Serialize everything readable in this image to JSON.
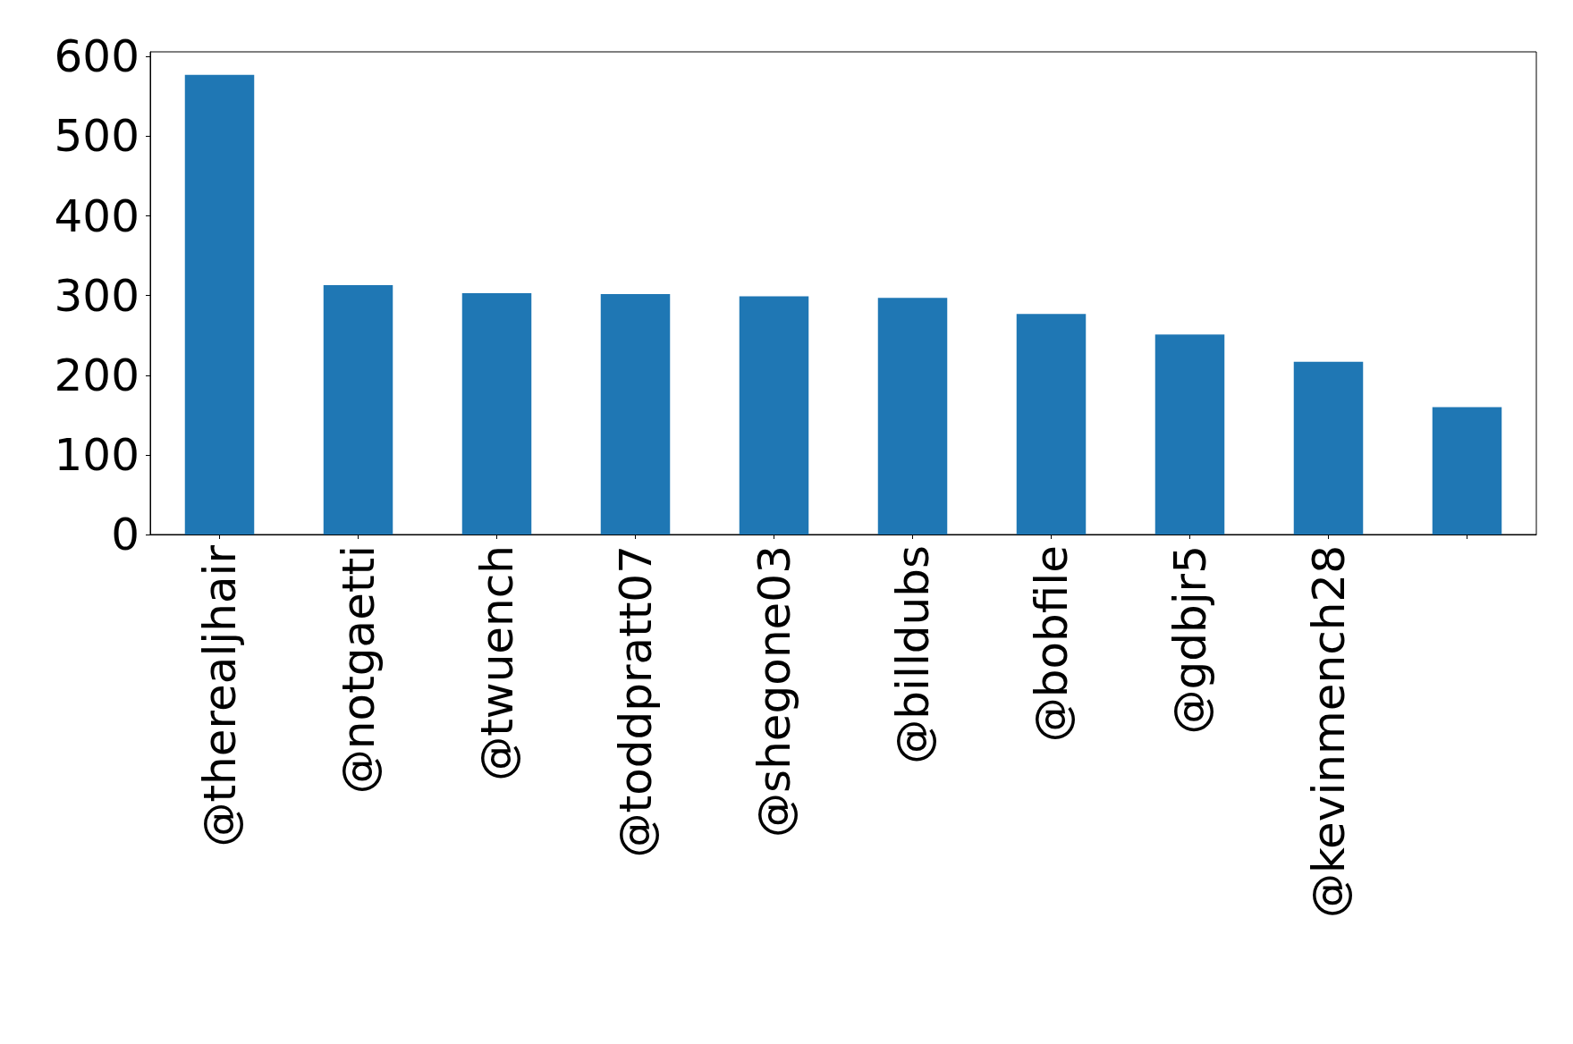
{
  "chart_data": {
    "type": "bar",
    "categories": [
      "@therealjhair",
      "@notgaetti",
      "@twuench",
      "@toddpratt07",
      "@shegone03",
      "@billdubs",
      "@bobfile",
      "@gdbjr5",
      "@kevinmench28",
      null
    ],
    "values": [
      577,
      313,
      303,
      302,
      299,
      297,
      277,
      251,
      217,
      160
    ],
    "color": "#1f77b4",
    "ylim": [
      0,
      606
    ],
    "yticks": [
      0,
      100,
      200,
      300,
      400,
      500,
      600
    ],
    "grid": false
  }
}
